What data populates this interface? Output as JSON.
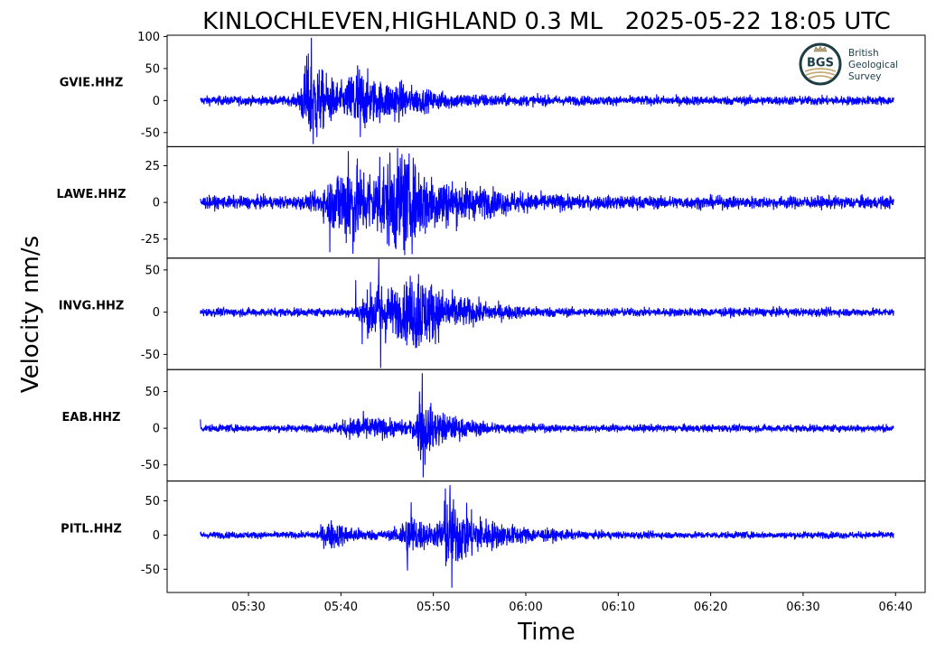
{
  "chart_data": {
    "type": "line",
    "title": "KINLOCHLEVEN,HIGHLAND 0.3 ML   2025-05-22 18:05 UTC",
    "xlabel": "Time",
    "ylabel": "Velocity nm/s",
    "x_ticks": [
      "05:30",
      "05:40",
      "05:50",
      "06:00",
      "06:10",
      "06:20",
      "06:30",
      "06:40"
    ],
    "x_tick_minutes": [
      330,
      340,
      350,
      360,
      370,
      380,
      390,
      400
    ],
    "x_range_minutes": [
      324.8,
      399.8
    ],
    "xlim_minutes": [
      321.2,
      403.2
    ],
    "color": "#0000ff",
    "grid": false,
    "logo": {
      "abbr": "BGS",
      "lines": [
        "British",
        "Geological",
        "Survey"
      ]
    },
    "series": [
      {
        "name": "GVIE.HHZ",
        "ylim": [
          -72,
          102
        ],
        "yticks": [
          100,
          50,
          0,
          -50
        ],
        "noise": 5,
        "bursts": [
          {
            "t": 336.6,
            "amp": 42,
            "rise": 0.9,
            "decay": 3.2,
            "width": 3.5
          },
          {
            "t": 341.6,
            "amp": 30,
            "rise": 0.7,
            "decay": 2.5,
            "width": 2.5
          },
          {
            "t": 346,
            "amp": 10,
            "rise": 1.5,
            "decay": 6,
            "width": 6
          }
        ],
        "spikes": [
          {
            "t": 336.8,
            "v": 98
          },
          {
            "t": 337.0,
            "v": -68
          },
          {
            "t": 336.3,
            "v": 70
          },
          {
            "t": 337.4,
            "v": -57
          },
          {
            "t": 341.8,
            "v": 55
          },
          {
            "t": 342.1,
            "v": -57
          }
        ]
      },
      {
        "name": "LAWE.HHZ",
        "ylim": [
          -38,
          38
        ],
        "yticks": [
          25,
          0,
          -25
        ],
        "noise": 3,
        "bursts": [
          {
            "t": 341,
            "amp": 18,
            "rise": 2.5,
            "decay": 5,
            "width": 6
          },
          {
            "t": 346.4,
            "amp": 15,
            "rise": 2,
            "decay": 6,
            "width": 6
          }
        ],
        "spikes": [
          {
            "t": 340.8,
            "v": 35
          },
          {
            "t": 341.3,
            "v": -35
          },
          {
            "t": 346.6,
            "v": 33
          },
          {
            "t": 346.9,
            "v": -36
          },
          {
            "t": 338.8,
            "v": -34
          },
          {
            "t": 344.2,
            "v": 31
          }
        ]
      },
      {
        "name": "INVG.HHZ",
        "ylim": [
          -68,
          64
        ],
        "yticks": [
          50,
          0,
          -50
        ],
        "noise": 3.5,
        "bursts": [
          {
            "t": 344.2,
            "amp": 24,
            "rise": 1.8,
            "decay": 4,
            "width": 5
          },
          {
            "t": 348.4,
            "amp": 22,
            "rise": 1.5,
            "decay": 4,
            "width": 5
          }
        ],
        "spikes": [
          {
            "t": 344.1,
            "v": 63
          },
          {
            "t": 344.3,
            "v": -66
          },
          {
            "t": 348.4,
            "v": 45
          },
          {
            "t": 348.2,
            "v": -42
          },
          {
            "t": 342.3,
            "v": -38
          },
          {
            "t": 341.6,
            "v": 38
          }
        ]
      },
      {
        "name": "EAB.HHZ",
        "ylim": [
          -72,
          80
        ],
        "yticks": [
          50,
          0,
          -50
        ],
        "noise": 3.5,
        "bursts": [
          {
            "t": 342.5,
            "amp": 9,
            "rise": 2.5,
            "decay": 5,
            "width": 6
          },
          {
            "t": 348.7,
            "amp": 22,
            "rise": 0.6,
            "decay": 3,
            "width": 3.5
          }
        ],
        "spikes": [
          {
            "t": 348.8,
            "v": 75
          },
          {
            "t": 348.9,
            "v": -67
          },
          {
            "t": 348.5,
            "v": 50
          },
          {
            "t": 349.1,
            "v": -50
          },
          {
            "t": 324.8,
            "v": 12
          }
        ]
      },
      {
        "name": "PITL.HHZ",
        "ylim": [
          -84,
          79
        ],
        "yticks": [
          50,
          0,
          -50
        ],
        "noise": 3.5,
        "bursts": [
          {
            "t": 339,
            "amp": 12,
            "rise": 1.2,
            "decay": 2.5,
            "width": 3
          },
          {
            "t": 347.5,
            "amp": 20,
            "rise": 1.2,
            "decay": 2.5,
            "width": 3
          },
          {
            "t": 351.6,
            "amp": 32,
            "rise": 0.8,
            "decay": 4.5,
            "width": 4.5
          }
        ],
        "spikes": [
          {
            "t": 351.8,
            "v": 73
          },
          {
            "t": 352.0,
            "v": -77
          },
          {
            "t": 351.3,
            "v": 68
          },
          {
            "t": 347.2,
            "v": -52
          },
          {
            "t": 347.6,
            "v": 48
          }
        ]
      }
    ]
  }
}
